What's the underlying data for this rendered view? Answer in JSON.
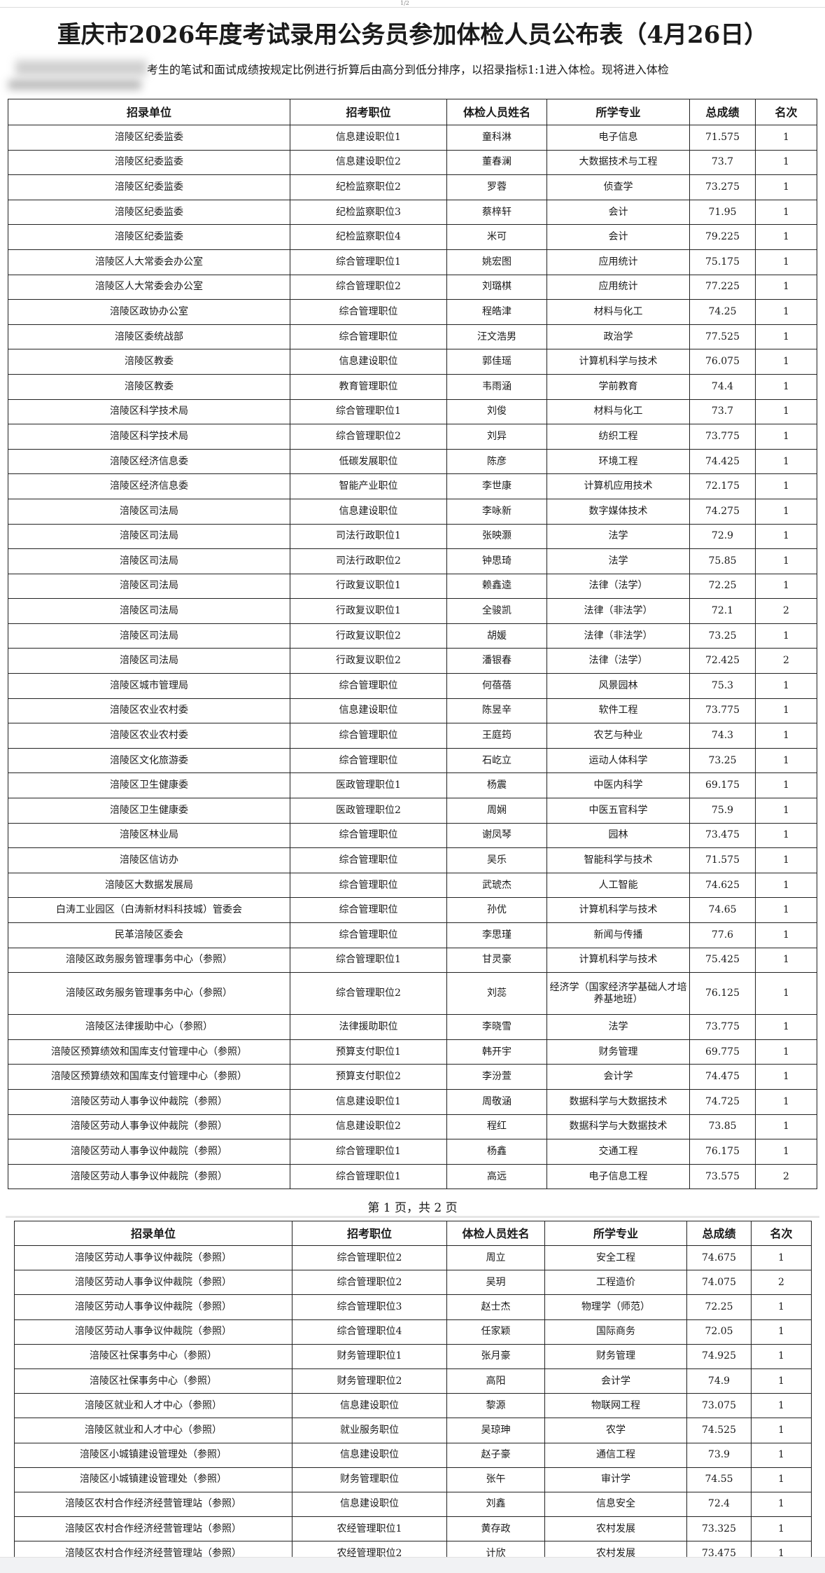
{
  "top_indicator": "1/2",
  "title": "重庆市2026年度考试录用公务员参加体检人员公布表（4月26日）",
  "intro": "考生的笔试和面试成绩按规定比例进行折算后由高分到低分排序，以招录指标1:1进入体检。现将进入体检",
  "columns": [
    "招录单位",
    "招考职位",
    "体检人员姓名",
    "所学专业",
    "总成绩",
    "名次"
  ],
  "page_footer": "第 1 页，共 2 页",
  "page1_rows": [
    [
      "涪陵区纪委监委",
      "信息建设职位1",
      "童科淋",
      "电子信息",
      "71.575",
      "1"
    ],
    [
      "涪陵区纪委监委",
      "信息建设职位2",
      "董春澜",
      "大数据技术与工程",
      "73.7",
      "1"
    ],
    [
      "涪陵区纪委监委",
      "纪检监察职位2",
      "罗蓉",
      "侦查学",
      "73.275",
      "1"
    ],
    [
      "涪陵区纪委监委",
      "纪检监察职位3",
      "蔡梓轩",
      "会计",
      "71.95",
      "1"
    ],
    [
      "涪陵区纪委监委",
      "纪检监察职位4",
      "米可",
      "会计",
      "79.225",
      "1"
    ],
    [
      "涪陵区人大常委会办公室",
      "综合管理职位1",
      "姚宏图",
      "应用统计",
      "75.175",
      "1"
    ],
    [
      "涪陵区人大常委会办公室",
      "综合管理职位2",
      "刘璐棋",
      "应用统计",
      "77.225",
      "1"
    ],
    [
      "涪陵区政协办公室",
      "综合管理职位",
      "程皓津",
      "材料与化工",
      "74.25",
      "1"
    ],
    [
      "涪陵区委统战部",
      "综合管理职位",
      "汪文浩男",
      "政治学",
      "77.525",
      "1"
    ],
    [
      "涪陵区教委",
      "信息建设职位",
      "郭佳瑶",
      "计算机科学与技术",
      "76.075",
      "1"
    ],
    [
      "涪陵区教委",
      "教育管理职位",
      "韦雨涵",
      "学前教育",
      "74.4",
      "1"
    ],
    [
      "涪陵区科学技术局",
      "综合管理职位1",
      "刘俊",
      "材料与化工",
      "73.7",
      "1"
    ],
    [
      "涪陵区科学技术局",
      "综合管理职位2",
      "刘异",
      "纺织工程",
      "73.775",
      "1"
    ],
    [
      "涪陵区经济信息委",
      "低碳发展职位",
      "陈彦",
      "环境工程",
      "74.425",
      "1"
    ],
    [
      "涪陵区经济信息委",
      "智能产业职位",
      "李世康",
      "计算机应用技术",
      "72.175",
      "1"
    ],
    [
      "涪陵区司法局",
      "信息建设职位",
      "李咏新",
      "数字媒体技术",
      "74.275",
      "1"
    ],
    [
      "涪陵区司法局",
      "司法行政职位1",
      "张映灏",
      "法学",
      "72.9",
      "1"
    ],
    [
      "涪陵区司法局",
      "司法行政职位2",
      "钟思琦",
      "法学",
      "75.85",
      "1"
    ],
    [
      "涪陵区司法局",
      "行政复议职位1",
      "赖鑫逵",
      "法律（法学）",
      "72.25",
      "1"
    ],
    [
      "涪陵区司法局",
      "行政复议职位1",
      "全骏凯",
      "法律（非法学）",
      "72.1",
      "2"
    ],
    [
      "涪陵区司法局",
      "行政复议职位2",
      "胡媛",
      "法律（非法学）",
      "73.25",
      "1"
    ],
    [
      "涪陵区司法局",
      "行政复议职位2",
      "潘银春",
      "法律（法学）",
      "72.425",
      "2"
    ],
    [
      "涪陵区城市管理局",
      "综合管理职位",
      "何蓓蓓",
      "风景园林",
      "75.3",
      "1"
    ],
    [
      "涪陵区农业农村委",
      "信息建设职位",
      "陈昱辛",
      "软件工程",
      "73.775",
      "1"
    ],
    [
      "涪陵区农业农村委",
      "综合管理职位",
      "王庭筠",
      "农艺与种业",
      "74.3",
      "1"
    ],
    [
      "涪陵区文化旅游委",
      "综合管理职位",
      "石屹立",
      "运动人体科学",
      "73.25",
      "1"
    ],
    [
      "涪陵区卫生健康委",
      "医政管理职位1",
      "杨震",
      "中医内科学",
      "69.175",
      "1"
    ],
    [
      "涪陵区卫生健康委",
      "医政管理职位2",
      "周娴",
      "中医五官科学",
      "75.9",
      "1"
    ],
    [
      "涪陵区林业局",
      "综合管理职位",
      "谢凤琴",
      "园林",
      "73.475",
      "1"
    ],
    [
      "涪陵区信访办",
      "综合管理职位",
      "吴乐",
      "智能科学与技术",
      "71.575",
      "1"
    ],
    [
      "涪陵区大数据发展局",
      "综合管理职位",
      "武琥杰",
      "人工智能",
      "74.625",
      "1"
    ],
    [
      "白涛工业园区（白涛新材料科技城）管委会",
      "综合管理职位",
      "孙优",
      "计算机科学与技术",
      "74.65",
      "1"
    ],
    [
      "民革涪陵区委会",
      "综合管理职位",
      "李思瑾",
      "新闻与传播",
      "77.6",
      "1"
    ],
    [
      "涪陵区政务服务管理事务中心（参照）",
      "综合管理职位1",
      "甘灵豪",
      "计算机科学与技术",
      "75.425",
      "1"
    ],
    [
      "涪陵区政务服务管理事务中心（参照）",
      "综合管理职位2",
      "刘蕊",
      "经济学（国家经济学基础人才培养基地班）",
      "76.125",
      "1"
    ],
    [
      "涪陵区法律援助中心（参照）",
      "法律援助职位",
      "李晓雪",
      "法学",
      "73.775",
      "1"
    ],
    [
      "涪陵区预算绩效和国库支付管理中心（参照）",
      "预算支付职位1",
      "韩开宇",
      "财务管理",
      "69.775",
      "1"
    ],
    [
      "涪陵区预算绩效和国库支付管理中心（参照）",
      "预算支付职位2",
      "李汾萱",
      "会计学",
      "74.475",
      "1"
    ],
    [
      "涪陵区劳动人事争议仲裁院（参照）",
      "信息建设职位1",
      "周敬涵",
      "数据科学与大数据技术",
      "74.725",
      "1"
    ],
    [
      "涪陵区劳动人事争议仲裁院（参照）",
      "信息建设职位2",
      "程红",
      "数据科学与大数据技术",
      "73.85",
      "1"
    ],
    [
      "涪陵区劳动人事争议仲裁院（参照）",
      "综合管理职位1",
      "杨鑫",
      "交通工程",
      "76.175",
      "1"
    ],
    [
      "涪陵区劳动人事争议仲裁院（参照）",
      "综合管理职位1",
      "高远",
      "电子信息工程",
      "73.575",
      "2"
    ]
  ],
  "page2_rows": [
    [
      "涪陵区劳动人事争议仲裁院（参照）",
      "综合管理职位2",
      "周立",
      "安全工程",
      "74.675",
      "1"
    ],
    [
      "涪陵区劳动人事争议仲裁院（参照）",
      "综合管理职位2",
      "吴玥",
      "工程造价",
      "74.075",
      "2"
    ],
    [
      "涪陵区劳动人事争议仲裁院（参照）",
      "综合管理职位3",
      "赵士杰",
      "物理学（师范）",
      "72.25",
      "1"
    ],
    [
      "涪陵区劳动人事争议仲裁院（参照）",
      "综合管理职位4",
      "任家颖",
      "国际商务",
      "72.05",
      "1"
    ],
    [
      "涪陵区社保事务中心（参照）",
      "财务管理职位1",
      "张月豪",
      "财务管理",
      "74.925",
      "1"
    ],
    [
      "涪陵区社保事务中心（参照）",
      "财务管理职位2",
      "高阳",
      "会计学",
      "74.9",
      "1"
    ],
    [
      "涪陵区就业和人才中心（参照）",
      "信息建设职位",
      "黎源",
      "物联网工程",
      "73.075",
      "1"
    ],
    [
      "涪陵区就业和人才中心（参照）",
      "就业服务职位",
      "吴琼珅",
      "农学",
      "74.525",
      "1"
    ],
    [
      "涪陵区小城镇建设管理处（参照）",
      "信息建设职位",
      "赵子豪",
      "通信工程",
      "73.9",
      "1"
    ],
    [
      "涪陵区小城镇建设管理处（参照）",
      "财务管理职位",
      "张午",
      "审计学",
      "74.55",
      "1"
    ],
    [
      "涪陵区农村合作经济经营管理站（参照）",
      "信息建设职位",
      "刘鑫",
      "信息安全",
      "72.4",
      "1"
    ],
    [
      "涪陵区农村合作经济经营管理站（参照）",
      "农经管理职位1",
      "黄存政",
      "农村发展",
      "73.325",
      "1"
    ],
    [
      "涪陵区农村合作经济经营管理站（参照）",
      "农经管理职位2",
      "计欣",
      "农村发展",
      "73.475",
      "1"
    ]
  ]
}
